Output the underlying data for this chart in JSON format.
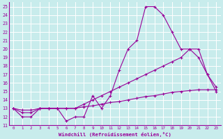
{
  "xlabel": "Windchill (Refroidissement éolien,°C)",
  "background_color": "#c8ecec",
  "line_color": "#990099",
  "grid_color": "#ffffff",
  "xlim": [
    -0.5,
    23.5
  ],
  "ylim": [
    11,
    25.5
  ],
  "xticks": [
    0,
    1,
    2,
    3,
    4,
    5,
    6,
    7,
    8,
    9,
    10,
    11,
    12,
    13,
    14,
    15,
    16,
    17,
    18,
    19,
    20,
    21,
    22,
    23
  ],
  "yticks": [
    11,
    12,
    13,
    14,
    15,
    16,
    17,
    18,
    19,
    20,
    21,
    22,
    23,
    24,
    25
  ],
  "line1_x": [
    0,
    1,
    2,
    3,
    4,
    5,
    6,
    7,
    8,
    9,
    10,
    11,
    12,
    13,
    14,
    15,
    16,
    17,
    18,
    19,
    20,
    21,
    22,
    23
  ],
  "line1_y": [
    13,
    12,
    12,
    13,
    13,
    13,
    11.5,
    12,
    12,
    14.5,
    13,
    14.5,
    17.5,
    20,
    21,
    25,
    25,
    24,
    22,
    20,
    20,
    19,
    17,
    15
  ],
  "line2_x": [
    0,
    1,
    2,
    3,
    4,
    5,
    6,
    7,
    8,
    9,
    10,
    11,
    12,
    13,
    14,
    15,
    16,
    17,
    18,
    19,
    20,
    21,
    22,
    23
  ],
  "line2_y": [
    13,
    12.5,
    12.5,
    13,
    13,
    13,
    13,
    13,
    13.5,
    14,
    14.5,
    15,
    15.5,
    16,
    16.5,
    17,
    17.5,
    18,
    18.5,
    19,
    20,
    20,
    17,
    15.5
  ],
  "line3_x": [
    0,
    1,
    2,
    3,
    4,
    5,
    6,
    7,
    8,
    9,
    10,
    11,
    12,
    13,
    14,
    15,
    16,
    17,
    18,
    19,
    20,
    21,
    22,
    23
  ],
  "line3_y": [
    13,
    12.8,
    12.8,
    13,
    13,
    13,
    13,
    13,
    13.2,
    13.3,
    13.5,
    13.7,
    13.8,
    14,
    14.2,
    14.4,
    14.5,
    14.7,
    14.9,
    15,
    15.1,
    15.2,
    15.2,
    15.2
  ]
}
